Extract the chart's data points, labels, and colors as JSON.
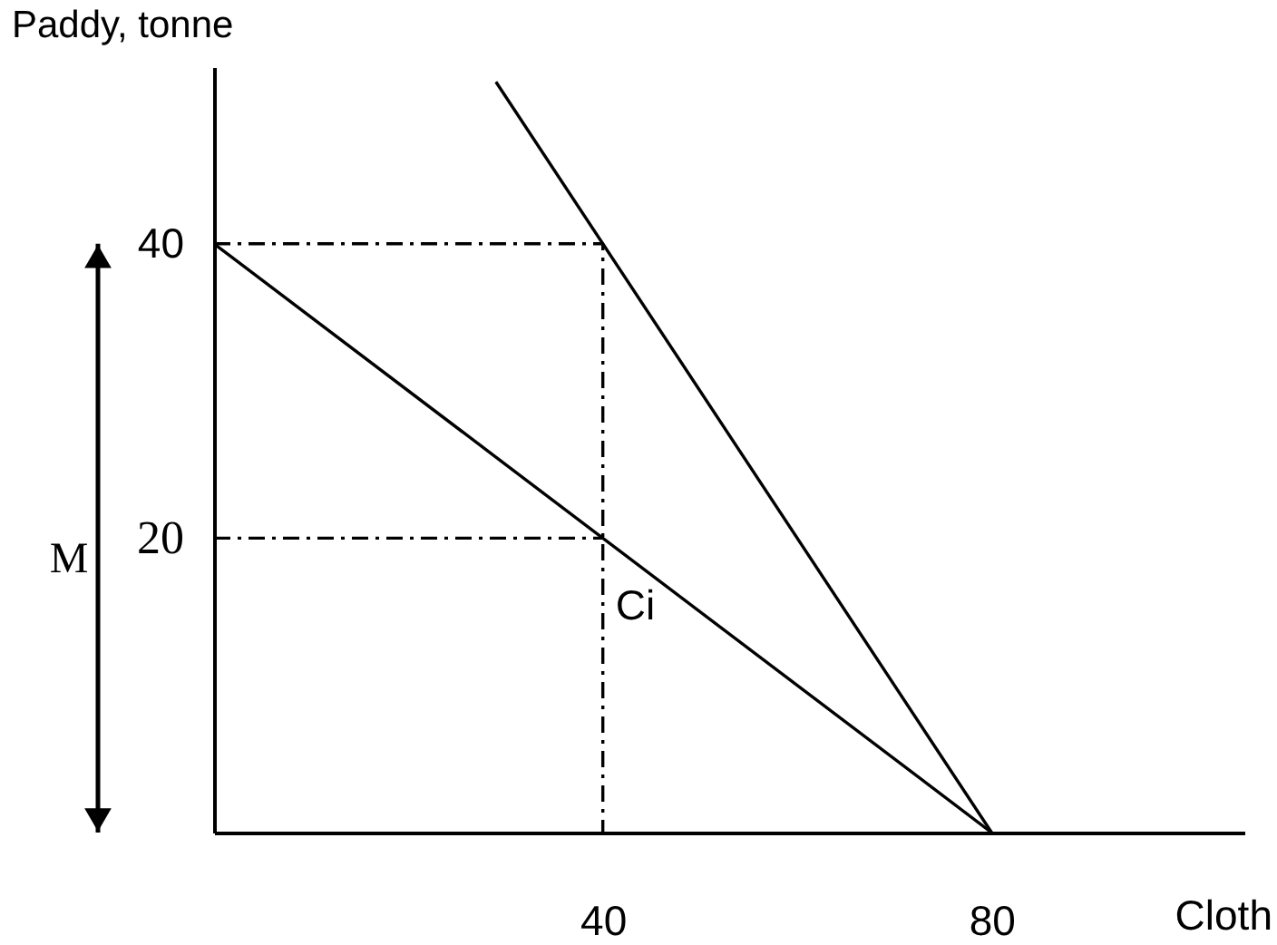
{
  "chart_data": {
    "type": "line",
    "xlabel": "Cloth",
    "ylabel": "Paddy, tonne",
    "xlim": [
      0,
      106
    ],
    "ylim": [
      0,
      52
    ],
    "xticks": [
      40,
      80
    ],
    "yticks": [
      20,
      40
    ],
    "grid": false,
    "annotations": [
      "M",
      {
        "text": "Ci",
        "x": 40,
        "y": 20
      }
    ],
    "series": [
      {
        "color": "#000000",
        "x": [
          0,
          80
        ],
        "values": [
          40,
          0
        ]
      },
      {
        "color": "#000000",
        "x": [
          29,
          80
        ],
        "values": [
          51,
          0
        ]
      },
      {
        "color": "#000000",
        "x": [
          0,
          40,
          40
        ],
        "values": [
          40,
          40,
          0
        ],
        "line_style": "dashed"
      },
      {
        "color": "#000000",
        "x": [
          0,
          40
        ],
        "values": [
          20,
          20
        ],
        "line_style": "dashed"
      }
    ]
  }
}
